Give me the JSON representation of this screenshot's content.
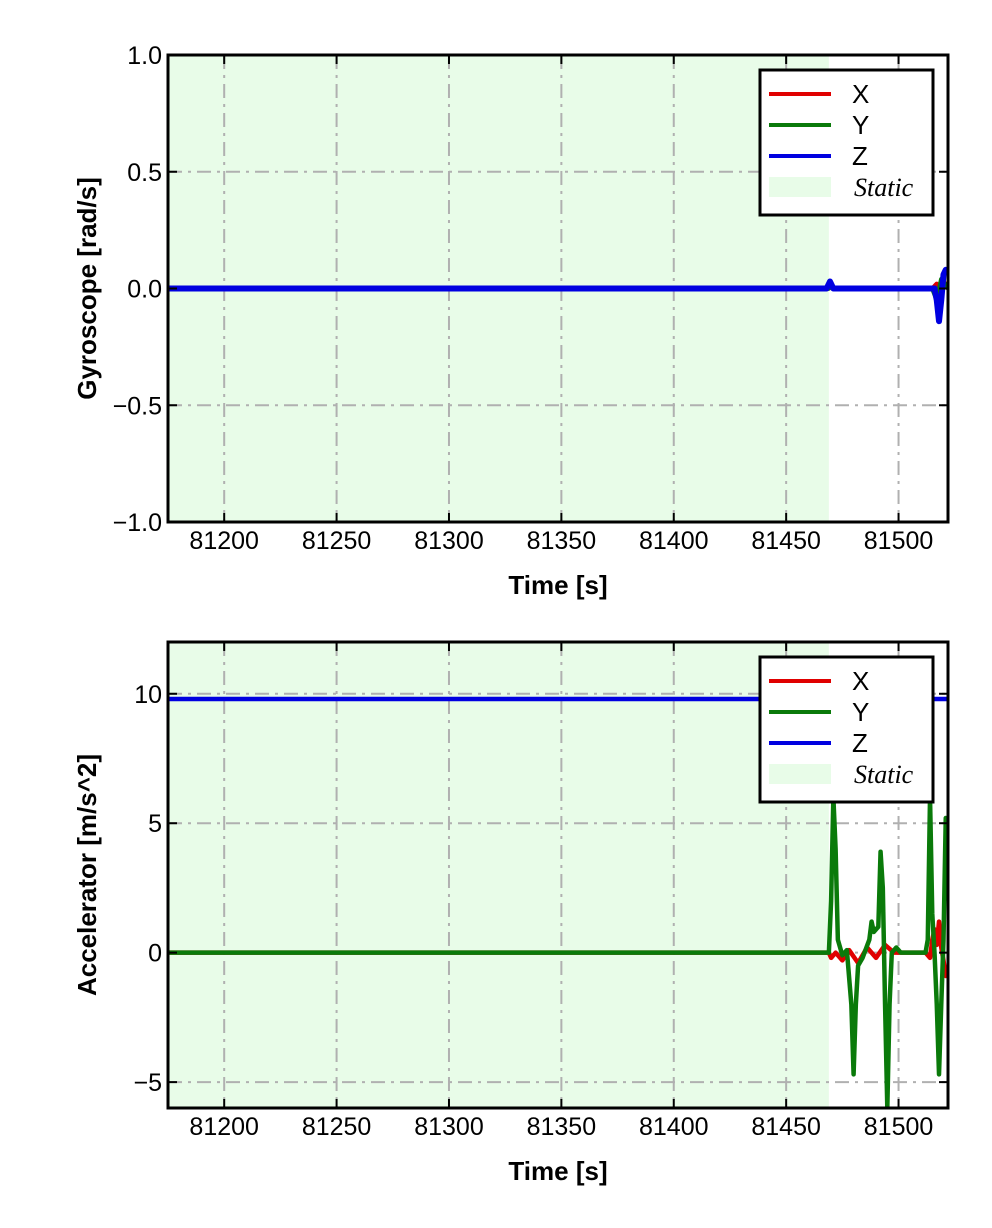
{
  "colors": {
    "x": "#e00000",
    "y": "#0a7a0a",
    "z": "#0000e0",
    "static": "#e8fce8",
    "grid": "#b0b0b0"
  },
  "chart_data": [
    {
      "type": "line",
      "xlabel": "Time [s]",
      "ylabel": "Gyroscope [rad/s]",
      "xlim": [
        81175,
        81522
      ],
      "ylim": [
        -1.0,
        1.0
      ],
      "xticks": [
        81200,
        81250,
        81300,
        81350,
        81400,
        81450,
        81500
      ],
      "yticks": [
        -1.0,
        -0.5,
        0.0,
        0.5,
        1.0
      ],
      "ytick_labels": [
        "−1.0",
        "−0.5",
        "0.0",
        "0.5",
        "1.0"
      ],
      "grid": true,
      "legend_position": "top-right",
      "static_region": {
        "label": "Static",
        "x": [
          81175,
          81469
        ]
      },
      "series": [
        {
          "name": "X",
          "color_key": "x",
          "points": [
            [
              81175,
              0.0
            ],
            [
              81469,
              0.0
            ],
            [
              81470,
              0.01
            ],
            [
              81471,
              0.0
            ],
            [
              81515,
              0.0
            ],
            [
              81517,
              0.02
            ],
            [
              81518,
              -0.08
            ],
            [
              81519,
              -0.02
            ],
            [
              81520,
              0.03
            ],
            [
              81522,
              0.0
            ]
          ]
        },
        {
          "name": "Y",
          "color_key": "y",
          "points": [
            [
              81175,
              0.0
            ],
            [
              81469,
              0.0
            ],
            [
              81470,
              0.015
            ],
            [
              81471,
              0.0
            ],
            [
              81515,
              0.0
            ],
            [
              81517,
              -0.05
            ],
            [
              81519,
              0.04
            ],
            [
              81522,
              0.0
            ]
          ]
        },
        {
          "name": "Z",
          "color_key": "z",
          "points": [
            [
              81175,
              0.0
            ],
            [
              81468,
              0.0
            ],
            [
              81469.5,
              0.03
            ],
            [
              81471,
              0.0
            ],
            [
              81516,
              0.0
            ],
            [
              81517,
              -0.05
            ],
            [
              81518,
              -0.14
            ],
            [
              81519,
              -0.05
            ],
            [
              81520,
              0.06
            ],
            [
              81521,
              0.08
            ],
            [
              81522,
              0.06
            ]
          ]
        }
      ]
    },
    {
      "type": "line",
      "xlabel": "Time [s]",
      "ylabel": "Accelerator [m/s^2]",
      "xlim": [
        81175,
        81522
      ],
      "ylim": [
        -6.0,
        12.0
      ],
      "xticks": [
        81200,
        81250,
        81300,
        81350,
        81400,
        81450,
        81500
      ],
      "yticks": [
        -5,
        0,
        5,
        10
      ],
      "ytick_labels": [
        "−5",
        "0",
        "5",
        "10"
      ],
      "grid": true,
      "legend_position": "top-right",
      "static_region": {
        "label": "Static",
        "x": [
          81175,
          81469
        ]
      },
      "series": [
        {
          "name": "X",
          "color_key": "x",
          "points": [
            [
              81175,
              0.0
            ],
            [
              81469,
              0.0
            ],
            [
              81470,
              -0.2
            ],
            [
              81472,
              0.0
            ],
            [
              81475,
              -0.3
            ],
            [
              81478,
              0.1
            ],
            [
              81482,
              -0.4
            ],
            [
              81486,
              0.2
            ],
            [
              81490,
              -0.2
            ],
            [
              81494,
              0.3
            ],
            [
              81498,
              0.0
            ],
            [
              81512,
              0.0
            ],
            [
              81514,
              -0.2
            ],
            [
              81515,
              0.5
            ],
            [
              81516,
              0.9
            ],
            [
              81517,
              0.3
            ],
            [
              81518,
              1.2
            ],
            [
              81519,
              0.2
            ],
            [
              81520,
              -0.3
            ],
            [
              81521,
              -0.9
            ],
            [
              81522,
              -0.5
            ]
          ]
        },
        {
          "name": "Y",
          "color_key": "y",
          "points": [
            [
              81175,
              0.0
            ],
            [
              81469,
              0.0
            ],
            [
              81470,
              2.0
            ],
            [
              81471,
              6.0
            ],
            [
              81472,
              4.0
            ],
            [
              81473,
              0.5
            ],
            [
              81475,
              -0.1
            ],
            [
              81477,
              0.1
            ],
            [
              81479,
              -2.0
            ],
            [
              81480,
              -4.7
            ],
            [
              81481,
              -2.0
            ],
            [
              81482,
              -0.5
            ],
            [
              81484,
              -0.2
            ],
            [
              81487,
              0.5
            ],
            [
              81488,
              1.2
            ],
            [
              81489,
              0.8
            ],
            [
              81491,
              1.0
            ],
            [
              81492,
              3.9
            ],
            [
              81493,
              2.5
            ],
            [
              81494,
              -2.0
            ],
            [
              81495,
              -6.0
            ],
            [
              81496,
              -2.0
            ],
            [
              81497,
              0.0
            ],
            [
              81499,
              0.2
            ],
            [
              81501,
              0.0
            ],
            [
              81512,
              0.0
            ],
            [
              81513,
              0.5
            ],
            [
              81514,
              6.0
            ],
            [
              81515,
              1.5
            ],
            [
              81516,
              0.0
            ],
            [
              81517,
              -2.0
            ],
            [
              81518,
              -4.7
            ],
            [
              81519,
              -2.0
            ],
            [
              81520,
              0.5
            ],
            [
              81521,
              5.2
            ],
            [
              81522,
              2.0
            ]
          ]
        },
        {
          "name": "Z",
          "color_key": "z",
          "points": [
            [
              81175,
              9.8
            ],
            [
              81469,
              9.8
            ],
            [
              81515,
              9.8
            ],
            [
              81522,
              9.8
            ]
          ]
        }
      ]
    }
  ]
}
